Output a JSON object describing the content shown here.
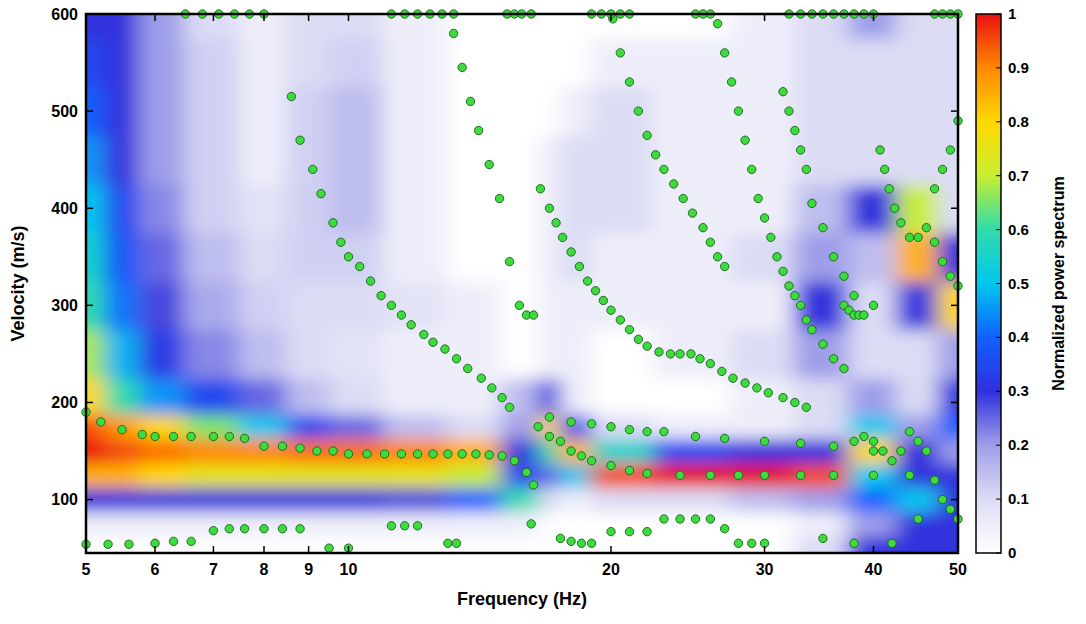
{
  "chart_data": {
    "type": "heatmap",
    "x_label": "Frequency (Hz)",
    "y_label": "Velocity (m/s)",
    "log": "x",
    "grid": false,
    "xlim": [
      5,
      50
    ],
    "xticks": [
      5,
      6,
      7,
      8,
      9,
      10,
      20,
      30,
      40,
      50
    ],
    "ylim": [
      45,
      600
    ],
    "yticks": [
      100,
      200,
      300,
      400,
      500,
      600
    ],
    "heatmap": {
      "x": [
        5,
        5.5,
        6,
        7,
        8,
        9,
        10,
        12,
        14,
        16,
        17,
        18,
        20,
        25,
        30,
        35,
        40,
        45,
        50
      ],
      "y": [
        50,
        75,
        100,
        125,
        150,
        175,
        200,
        250,
        300,
        350,
        400,
        450,
        500,
        550,
        600
      ],
      "z": [
        [
          0,
          0,
          0,
          0,
          0,
          0,
          0,
          0,
          0,
          0,
          0,
          0,
          0,
          0,
          0,
          0.1,
          0.3,
          0.3,
          0.3
        ],
        [
          0.05,
          0.05,
          0.05,
          0.05,
          0.05,
          0.05,
          0.05,
          0.05,
          0.05,
          0.05,
          0,
          0,
          0,
          0,
          0,
          0.05,
          0.2,
          0.3,
          0.3
        ],
        [
          0.3,
          0.3,
          0.3,
          0.3,
          0.3,
          0.3,
          0.3,
          0.28,
          0.4,
          0.6,
          0.1,
          0.05,
          0.1,
          0.1,
          0.15,
          0.2,
          0.4,
          0.5,
          0.3
        ],
        [
          0.85,
          0.85,
          0.8,
          0.75,
          0.75,
          0.75,
          0.75,
          0.75,
          0.7,
          0.35,
          0.25,
          0.5,
          0.95,
          1.0,
          1.0,
          0.95,
          0.5,
          0.3,
          0.3
        ],
        [
          1.0,
          0.95,
          0.92,
          0.9,
          0.9,
          0.92,
          0.92,
          0.9,
          0.85,
          0.3,
          0.6,
          0.85,
          0.55,
          0.35,
          0.3,
          0.3,
          0.8,
          0.3,
          0.2
        ],
        [
          0.95,
          0.88,
          0.8,
          0.65,
          0.5,
          0.35,
          0.25,
          0.15,
          0.1,
          0.2,
          0.8,
          0.35,
          0.1,
          0.05,
          0.05,
          0.1,
          0.5,
          0.2,
          0.4
        ],
        [
          0.8,
          0.6,
          0.45,
          0.35,
          0.25,
          0.15,
          0.1,
          0.05,
          0.05,
          0.15,
          0.3,
          0.05,
          0,
          0,
          0.05,
          0.1,
          0.2,
          0.1,
          0.3
        ],
        [
          0.68,
          0.48,
          0.32,
          0.22,
          0.15,
          0.1,
          0.08,
          0.05,
          0.05,
          0,
          0.05,
          0.05,
          0,
          0.05,
          0.1,
          0.2,
          0.1,
          0.1,
          0.2
        ],
        [
          0.6,
          0.42,
          0.28,
          0.18,
          0.12,
          0.1,
          0.1,
          0.08,
          0.05,
          0,
          0.05,
          0.05,
          0.05,
          0.05,
          0.05,
          0.3,
          0.1,
          0.3,
          0.8
        ],
        [
          0.55,
          0.38,
          0.25,
          0.15,
          0.1,
          0.12,
          0.12,
          0.05,
          0,
          0,
          0.05,
          0.1,
          0.05,
          0.05,
          0.1,
          0.2,
          0.15,
          0.85,
          0.3
        ],
        [
          0.5,
          0.35,
          0.22,
          0.12,
          0.08,
          0.12,
          0.15,
          0.05,
          0,
          0,
          0.05,
          0.1,
          0.1,
          0.05,
          0.05,
          0.15,
          0.3,
          0.7,
          0.1
        ],
        [
          0.45,
          0.3,
          0.2,
          0.12,
          0.05,
          0.12,
          0.15,
          0.05,
          0,
          0,
          0.05,
          0.1,
          0.1,
          0.05,
          0.05,
          0.1,
          0.1,
          0.1,
          0.1
        ],
        [
          0.4,
          0.3,
          0.2,
          0.12,
          0.05,
          0.12,
          0.15,
          0.05,
          0,
          0,
          0,
          0.05,
          0.1,
          0.05,
          0.05,
          0.1,
          0.1,
          0.1,
          0.1
        ],
        [
          0.35,
          0.3,
          0.2,
          0.12,
          0.05,
          0.1,
          0.12,
          0.05,
          0,
          0,
          0,
          0,
          0.05,
          0.05,
          0.05,
          0.1,
          0.1,
          0.1,
          0.1
        ],
        [
          0.3,
          0.3,
          0.2,
          0.1,
          0.05,
          0.1,
          0.1,
          0.05,
          0,
          0,
          0,
          0,
          0,
          0,
          0.05,
          0.1,
          0.2,
          0.1,
          0.1
        ]
      ]
    },
    "colorbar": {
      "label": "Normalized power spectrum",
      "lim": [
        0,
        1
      ],
      "ticks": [
        0,
        0.1,
        0.2,
        0.3,
        0.4,
        0.5,
        0.6,
        0.7,
        0.8,
        0.9,
        1
      ]
    },
    "series": [
      {
        "type": "scatter",
        "color": "#3ddc3d",
        "marker": "circle",
        "x": [
          5,
          5.2,
          5.5,
          5.8,
          6,
          6.3,
          6.6,
          7,
          7.3,
          7.6,
          8,
          8.4,
          8.8,
          9.2,
          9.6,
          10,
          10.5,
          11,
          11.5,
          12,
          12.5,
          13,
          13.5,
          14,
          14.5,
          15,
          15.5,
          16,
          16.3
        ],
        "values": [
          190,
          180,
          172,
          167,
          165,
          165,
          165,
          165,
          165,
          163,
          155,
          155,
          153,
          150,
          150,
          147,
          147,
          147,
          147,
          147,
          147,
          147,
          147,
          147,
          146,
          145,
          140,
          128,
          115
        ]
      },
      {
        "type": "scatter",
        "color": "#3ddc3d",
        "marker": "circle",
        "x": [
          5,
          5.3,
          5.6,
          6,
          6.3,
          6.6,
          7,
          7.3,
          7.6,
          8,
          8.4,
          8.8
        ],
        "values": [
          54,
          54,
          54,
          55,
          57,
          57,
          68,
          70,
          70,
          70,
          70,
          70
        ]
      },
      {
        "type": "scatter",
        "color": "#3ddc3d",
        "marker": "circle",
        "x": [
          8.6,
          8.8,
          9.1,
          9.3,
          9.6,
          9.8,
          10,
          10.3,
          10.6,
          10.9,
          11.2,
          11.5,
          11.8,
          12.2,
          12.5,
          12.9,
          13.3,
          13.7,
          14.2,
          14.6,
          15,
          15.3
        ],
        "values": [
          515,
          470,
          440,
          415,
          385,
          365,
          350,
          340,
          325,
          310,
          300,
          290,
          280,
          270,
          262,
          255,
          245,
          235,
          225,
          215,
          205,
          195
        ]
      },
      {
        "type": "scatter",
        "color": "#3ddc3d",
        "marker": "circle",
        "x": [
          13.2,
          13.5,
          13.8,
          14.1,
          14.5,
          14.9,
          15.3,
          15.7,
          16,
          16.3
        ],
        "values": [
          580,
          545,
          510,
          480,
          445,
          410,
          345,
          300,
          290,
          290
        ]
      },
      {
        "type": "scatter",
        "color": "#3ddc3d",
        "marker": "circle",
        "x": [
          16.6,
          17,
          17.3,
          17.6,
          18,
          18.4,
          18.8,
          19.2,
          19.6,
          20,
          20.5,
          21,
          21.5,
          22,
          22.7,
          23.4,
          24,
          24.7,
          25.3,
          26,
          26.8,
          27.6,
          28.5,
          29.4,
          30.3,
          31.5,
          32.5,
          33.5
        ],
        "values": [
          420,
          400,
          385,
          370,
          355,
          340,
          325,
          315,
          305,
          295,
          285,
          275,
          265,
          258,
          252,
          250,
          250,
          250,
          245,
          240,
          232,
          225,
          220,
          215,
          210,
          205,
          200,
          195
        ]
      },
      {
        "type": "scatter",
        "color": "#3ddc3d",
        "marker": "circle",
        "x": [
          20.1,
          20.5,
          21,
          21.5,
          22,
          22.5,
          23,
          23.6,
          24.2,
          24.8,
          25.5,
          26,
          26.5,
          27
        ],
        "values": [
          595,
          560,
          530,
          500,
          475,
          455,
          440,
          425,
          410,
          395,
          380,
          365,
          350,
          340
        ]
      },
      {
        "type": "scatter",
        "color": "#3ddc3d",
        "marker": "circle",
        "x": [
          26.5,
          27,
          27.5,
          28,
          28.5,
          29,
          29.5,
          30,
          30.5,
          31,
          31.5,
          32,
          32.5,
          33,
          33.5,
          34,
          35,
          36,
          37
        ],
        "values": [
          590,
          560,
          530,
          500,
          470,
          440,
          410,
          390,
          370,
          350,
          335,
          320,
          310,
          300,
          285,
          275,
          260,
          245,
          235
        ]
      },
      {
        "type": "scatter",
        "color": "#3ddc3d",
        "marker": "circle",
        "x": [
          31.5,
          32,
          32.5,
          33,
          33.5,
          34,
          35,
          36,
          37,
          38
        ],
        "values": [
          520,
          500,
          480,
          460,
          440,
          405,
          380,
          350,
          330,
          310
        ]
      },
      {
        "type": "scatter",
        "color": "#3ddc3d",
        "marker": "circle",
        "x": [
          16.5,
          17,
          17.5,
          18,
          18.5,
          19,
          20,
          21,
          22,
          24,
          26,
          28,
          30,
          33,
          36,
          40,
          44
        ],
        "values": [
          175,
          165,
          160,
          150,
          145,
          140,
          135,
          130,
          127,
          125,
          125,
          125,
          125,
          125,
          125,
          125,
          125
        ]
      },
      {
        "type": "scatter",
        "color": "#3ddc3d",
        "marker": "circle",
        "x": [
          17,
          18,
          19,
          20,
          21,
          22,
          23,
          25,
          27,
          30,
          33,
          36,
          40
        ],
        "values": [
          185,
          180,
          178,
          175,
          172,
          170,
          170,
          165,
          163,
          160,
          158,
          155,
          150
        ]
      },
      {
        "type": "scatter",
        "color": "#3ddc3d",
        "marker": "circle",
        "x": [
          6.5,
          6.8,
          7.1,
          7.4,
          7.7,
          8,
          11.2,
          11.6,
          12,
          12.4,
          12.8,
          13.2,
          15.2,
          15.5,
          15.8,
          16.2,
          19,
          19.5,
          20,
          20.5,
          21,
          25,
          25.5,
          26,
          32,
          33,
          34,
          35,
          36,
          37,
          38,
          39,
          40,
          47,
          48,
          49,
          50
        ],
        "values": [
          600,
          600,
          600,
          600,
          600,
          600,
          600,
          600,
          600,
          600,
          600,
          600,
          600,
          600,
          600,
          600,
          600,
          600,
          600,
          600,
          600,
          600,
          600,
          600,
          600,
          600,
          600,
          600,
          600,
          600,
          600,
          600,
          600,
          600,
          600,
          600,
          600
        ]
      },
      {
        "type": "scatter",
        "color": "#3ddc3d",
        "marker": "circle",
        "x": [
          9.5,
          10,
          11.2,
          11.6,
          12,
          13,
          13.3,
          16.2,
          17.5,
          18,
          18.5,
          19,
          20,
          21,
          22,
          23,
          24,
          25,
          26,
          27,
          28,
          29,
          30,
          35,
          38,
          42,
          45
        ],
        "values": [
          50,
          50,
          73,
          73,
          73,
          55,
          55,
          75,
          60,
          57,
          55,
          55,
          67,
          67,
          67,
          80,
          80,
          80,
          80,
          70,
          55,
          55,
          55,
          60,
          55,
          55,
          80
        ]
      },
      {
        "type": "scatter",
        "color": "#3ddc3d",
        "marker": "circle",
        "x": [
          40.7,
          41.2,
          41.7,
          42.3,
          43,
          44,
          45,
          46,
          47,
          48,
          49,
          50
        ],
        "values": [
          460,
          440,
          420,
          400,
          385,
          370,
          370,
          380,
          365,
          345,
          330,
          320
        ]
      },
      {
        "type": "scatter",
        "color": "#3ddc3d",
        "marker": "circle",
        "x": [
          37,
          37.5,
          38,
          38.5,
          39,
          40,
          47,
          48,
          49,
          50
        ],
        "values": [
          300,
          295,
          290,
          290,
          290,
          300,
          420,
          440,
          460,
          490
        ]
      },
      {
        "type": "scatter",
        "color": "#3ddc3d",
        "marker": "circle",
        "x": [
          38,
          39,
          40,
          41,
          42,
          43,
          44,
          45,
          46,
          47,
          48,
          49,
          50
        ],
        "values": [
          160,
          165,
          160,
          150,
          140,
          150,
          170,
          160,
          150,
          120,
          100,
          90,
          80
        ]
      }
    ]
  }
}
